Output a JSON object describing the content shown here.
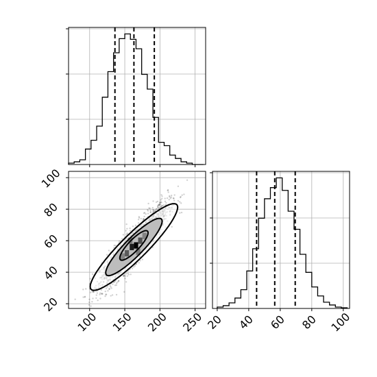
{
  "chart_data": {
    "type": "corner",
    "grid": true,
    "variables": [
      {
        "range": [
          70,
          265
        ],
        "ticks": [
          100,
          150,
          200,
          250
        ],
        "tick_labels": [
          "100",
          "150",
          "200",
          "250"
        ],
        "quantile_lines": [
          136,
          163,
          192
        ],
        "histogram": {
          "bin_edges": [
            70,
            78,
            86,
            94,
            102,
            110,
            118,
            126,
            134,
            142,
            150,
            158,
            166,
            174,
            182,
            190,
            198,
            206,
            214,
            222,
            230,
            238,
            246,
            254,
            262
          ],
          "counts": [
            2,
            4,
            7,
            23,
            36,
            57,
            100,
            138,
            166,
            187,
            194,
            186,
            172,
            134,
            112,
            70,
            33,
            28,
            14,
            9,
            4,
            2,
            0,
            0
          ]
        }
      },
      {
        "range": [
          17,
          104
        ],
        "ticks": [
          20,
          40,
          60,
          80,
          100
        ],
        "tick_labels": [
          "20",
          "40",
          "60",
          "80",
          "100"
        ],
        "quantile_lines": [
          45,
          56.5,
          69.5
        ],
        "histogram": {
          "bin_edges": [
            20,
            23.75,
            27.5,
            31.25,
            35,
            38.75,
            42.5,
            46.25,
            50,
            53.75,
            57.5,
            61.25,
            65,
            68.75,
            72.5,
            76.25,
            80,
            83.75,
            87.5,
            91.25,
            95,
            98.75,
            102.5
          ],
          "counts": [
            2,
            4,
            8,
            15,
            27,
            54,
            86,
            130,
            158,
            174,
            188,
            170,
            140,
            114,
            78,
            52,
            31,
            18,
            9,
            5,
            2,
            1
          ]
        }
      }
    ],
    "scatter_2d": {
      "x_range": [
        70,
        265
      ],
      "y_range": [
        17,
        104
      ],
      "correlation": 0.9,
      "mean": [
        163,
        57
      ],
      "std": [
        24,
        13
      ],
      "n_points": 1800,
      "contour_levels": [
        {
          "center": [
            163,
            56
          ],
          "half_major": [
            62,
            26
          ],
          "half_minor_width": 9
        },
        {
          "center": [
            163,
            56
          ],
          "half_major": [
            40,
            17
          ],
          "half_minor_width": 6.5
        },
        {
          "center": [
            163,
            57
          ],
          "half_major": [
            20,
            8.5
          ],
          "half_minor_width": 4
        }
      ],
      "density_cells": [
        {
          "x": 153,
          "y": 52,
          "level": 0.55
        },
        {
          "x": 160,
          "y": 56,
          "level": 0.85
        },
        {
          "x": 166,
          "y": 57,
          "level": 1.0
        },
        {
          "x": 172,
          "y": 60,
          "level": 0.6
        },
        {
          "x": 147,
          "y": 50,
          "level": 0.35
        },
        {
          "x": 178,
          "y": 63,
          "level": 0.35
        },
        {
          "x": 158,
          "y": 60,
          "level": 0.4
        },
        {
          "x": 169,
          "y": 53,
          "level": 0.4
        }
      ]
    }
  }
}
